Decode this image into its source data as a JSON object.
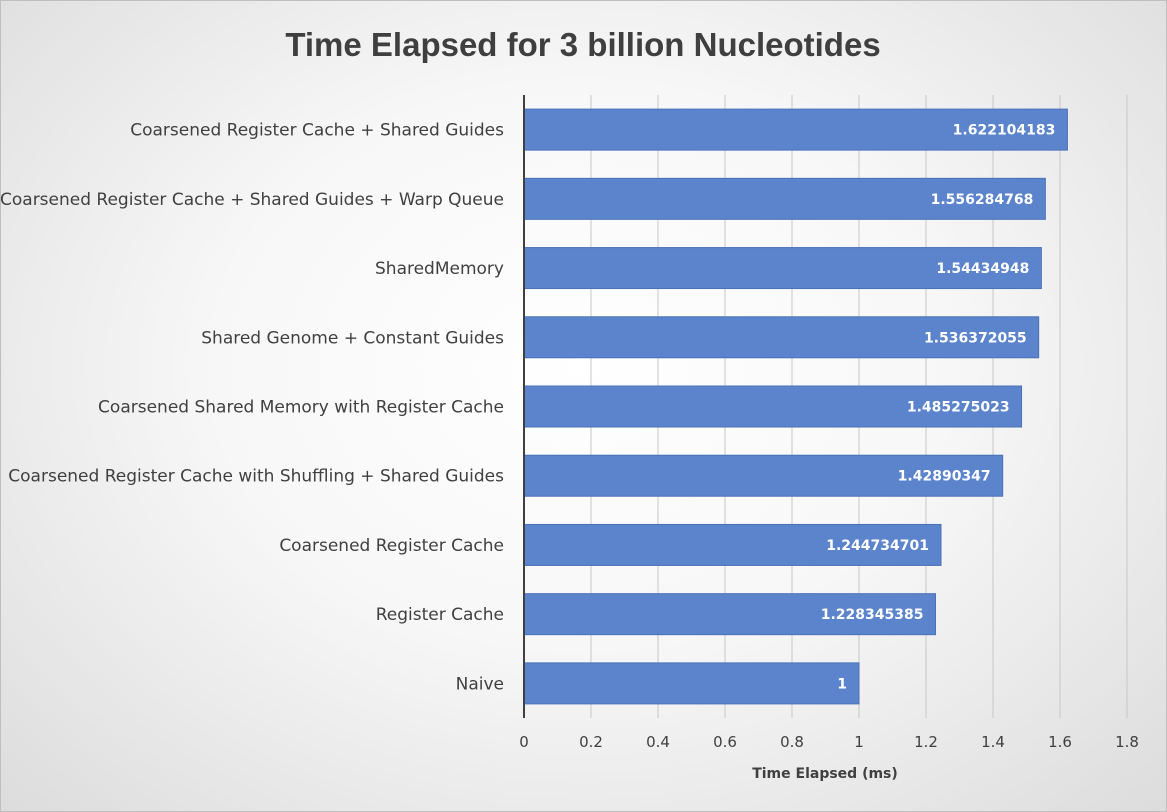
{
  "chart_data": {
    "type": "bar",
    "orientation": "horizontal",
    "title": "Time Elapsed for 3 billion Nucleotides",
    "xlabel": "Time Elapsed (ms)",
    "ylabel": "",
    "xlim": [
      0,
      1.8
    ],
    "ticks": [
      "0",
      "0.2",
      "0.4",
      "0.6",
      "0.8",
      "1",
      "1.2",
      "1.4",
      "1.6",
      "1.8"
    ],
    "grid": true,
    "legend": "none",
    "bar_color": "#5b84cc",
    "categories": [
      "Coarsened Register Cache + Shared Guides",
      "Coarsened Register Cache + Shared Guides + Warp Queue",
      "SharedMemory",
      "Shared Genome + Constant Guides",
      "Coarsened Shared Memory with Register Cache",
      "Coarsened Register Cache with Shuffling + Shared Guides",
      "Coarsened Register Cache",
      "Register Cache",
      "Naive"
    ],
    "values": [
      1.622104183,
      1.556284768,
      1.54434948,
      1.536372055,
      1.485275023,
      1.42890347,
      1.244734701,
      1.228345385,
      1
    ],
    "data_labels": [
      "1.622104183",
      "1.556284768",
      "1.54434948",
      "1.536372055",
      "1.485275023",
      "1.42890347",
      "1.244734701",
      "1.228345385",
      "1"
    ]
  }
}
